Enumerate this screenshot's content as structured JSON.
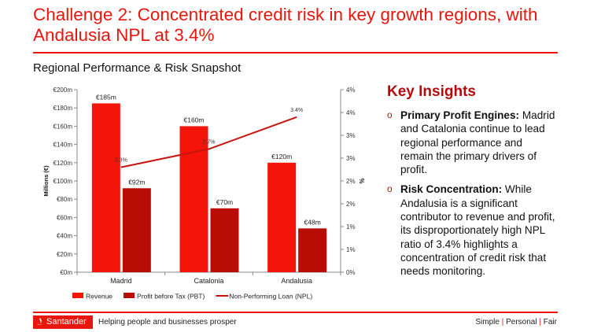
{
  "title": "Challenge 2: Concentrated credit risk in key growth regions, with Andalusia NPL at 3.4%",
  "subtitle": "Regional Performance & Risk Snapshot",
  "insights": {
    "heading": "Key Insights",
    "items": [
      {
        "bold": "Primary Profit Engines:",
        "text": " Madrid and Catalonia continue to lead regional performance and remain the primary drivers of profit."
      },
      {
        "bold": "Risk Concentration:",
        "text": " While Andalusia is a significant contributor to revenue and profit, its disproportionately high NPL ratio of 3.4% highlights a concentration of credit risk that needs monitoring."
      }
    ]
  },
  "footer": {
    "logo": "Santander",
    "tagline": "Helping people and businesses prosper",
    "values": [
      "Simple",
      "Personal",
      "Fair"
    ]
  },
  "colors": {
    "brand": "#e8160c",
    "revenue": "#f5140a",
    "pbt": "#b80c05",
    "npl": "#c8140e"
  },
  "chart_data": {
    "type": "bar",
    "categories": [
      "Madrid",
      "Catalonia",
      "Andalusia"
    ],
    "series": [
      {
        "name": "Revenue",
        "type": "bar",
        "axis": "left",
        "values": [
          185,
          160,
          120
        ],
        "labels": [
          "€185m",
          "€160m",
          "€120m"
        ]
      },
      {
        "name": "Profit before Tax (PBT)",
        "type": "bar",
        "axis": "left",
        "values": [
          92,
          70,
          48
        ],
        "labels": [
          "€92m",
          "€70m",
          "€48m"
        ]
      },
      {
        "name": "Non-Performing Loan (NPL)",
        "type": "line",
        "axis": "right",
        "values": [
          2.3,
          2.7,
          3.4
        ],
        "labels": [
          "2.3%",
          "2.7%",
          "3.4%"
        ]
      }
    ],
    "ylabel": "Millions (€)",
    "ylabel_right": "%",
    "ylim": [
      0,
      200
    ],
    "ylim_right": [
      0,
      4
    ],
    "yticks": [
      "€0m",
      "€20m",
      "€40m",
      "€60m",
      "€80m",
      "€100m",
      "€120m",
      "€140m",
      "€160m",
      "€180m",
      "€200m"
    ],
    "yticks_right": [
      "0%",
      "1%",
      "1%",
      "2%",
      "2%",
      "3%",
      "3%",
      "4%",
      "4%"
    ],
    "grid": false,
    "legend": "bottom"
  }
}
